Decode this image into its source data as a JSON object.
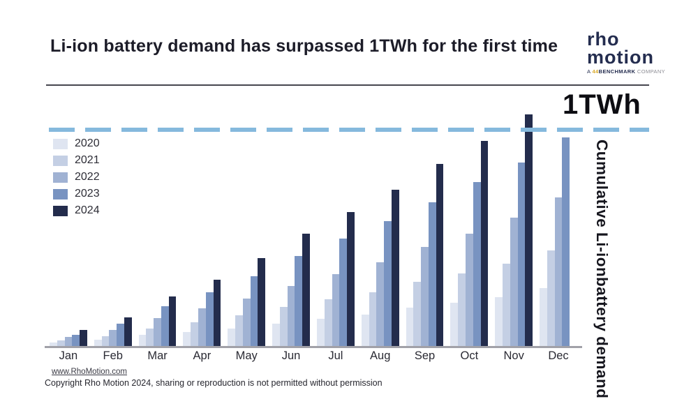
{
  "header": {
    "title": "Li-ion battery demand has surpassed 1TWh for the first time",
    "logo": {
      "line1": "rho",
      "line2": "motion",
      "tagline_prefix": "A ",
      "tagline_mark": "44",
      "tagline_bold": "BENCHMARK",
      "tagline_light": " COMPANY",
      "brand_navy": "#242d4f",
      "brand_gold": "#d9a927"
    }
  },
  "chart_data": {
    "type": "bar",
    "title": "Li-ion battery demand has surpassed 1TWh for the first time",
    "ylabel_lines": [
      "Cumulative Li-ion",
      "battery demand"
    ],
    "unit": "GWh",
    "ylim": [
      0,
      1109
    ],
    "grid": false,
    "legend_position": "top-left",
    "categories": [
      "Jan",
      "Feb",
      "Mar",
      "Apr",
      "May",
      "Jun",
      "Jul",
      "Aug",
      "Sep",
      "Oct",
      "Nov",
      "Dec"
    ],
    "series": [
      {
        "name": "2020",
        "color": "#dfe5f1",
        "values": [
          15,
          28,
          52,
          65,
          80,
          103,
          124,
          146,
          176,
          200,
          225,
          267
        ]
      },
      {
        "name": "2021",
        "color": "#c4cfe4",
        "values": [
          27,
          45,
          82,
          108,
          140,
          181,
          214,
          249,
          297,
          333,
          379,
          440
        ]
      },
      {
        "name": "2022",
        "color": "#a0b2d3",
        "values": [
          42,
          75,
          130,
          173,
          220,
          278,
          330,
          385,
          456,
          518,
          592,
          685
        ]
      },
      {
        "name": "2023",
        "color": "#7893c1",
        "values": [
          53,
          104,
          184,
          248,
          320,
          414,
          495,
          577,
          663,
          757,
          845,
          962
        ]
      },
      {
        "name": "2024",
        "color": "#232c4c",
        "values": [
          74,
          132,
          228,
          307,
          404,
          517,
          618,
          721,
          838,
          945,
          1068,
          null
        ]
      }
    ],
    "threshold": {
      "label": "1TWh",
      "value": 1000,
      "color": "#85b9dd"
    }
  },
  "footer": {
    "link": "www.RhoMotion.com",
    "copyright": "Copyright Rho Motion 2024, sharing or reproduction is not permitted without permission"
  }
}
